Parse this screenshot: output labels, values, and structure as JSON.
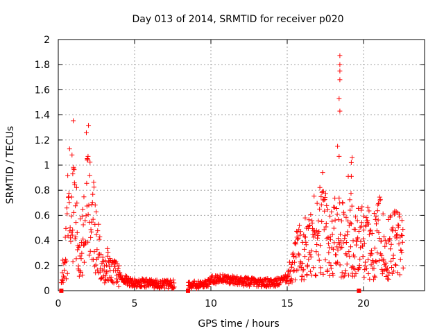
{
  "chart_data": {
    "type": "scatter",
    "title": "Day 013 of 2014, SRMTID for receiver p020",
    "xlabel": "GPS time / hours",
    "ylabel": "SRMTID / TECUs",
    "xlim": [
      0,
      24
    ],
    "ylim": [
      0,
      2
    ],
    "x_ticks": [
      0,
      5,
      10,
      15,
      20
    ],
    "y_ticks": [
      0,
      0.2,
      0.4,
      0.6,
      0.8,
      1,
      1.2,
      1.4,
      1.6,
      1.8,
      2
    ],
    "x_tick_labels": [
      "0",
      "5",
      "10",
      "15",
      "20"
    ],
    "y_tick_labels": [
      "0",
      "0.2",
      "0.4",
      "0.6",
      "0.8",
      "1",
      "1.2",
      "1.4",
      "1.6",
      "1.8",
      "2"
    ],
    "grid": true,
    "marker": "+",
    "series_color": "#ff0000",
    "series": [
      {
        "name": "SRMTID",
        "profile": [
          {
            "x": 0.2,
            "y": 0.05
          },
          {
            "x": 0.3,
            "y": 0.15
          },
          {
            "x": 0.45,
            "y": 0.22
          },
          {
            "x": 0.6,
            "y": 0.5
          },
          {
            "x": 0.75,
            "y": 0.7
          },
          {
            "x": 0.85,
            "y": 0.55
          },
          {
            "x": 0.95,
            "y": 0.8
          },
          {
            "x": 1.05,
            "y": 0.75
          },
          {
            "x": 1.2,
            "y": 0.55
          },
          {
            "x": 1.35,
            "y": 0.3
          },
          {
            "x": 1.5,
            "y": 0.25
          },
          {
            "x": 1.6,
            "y": 0.42
          },
          {
            "x": 1.75,
            "y": 0.55
          },
          {
            "x": 1.85,
            "y": 0.9
          },
          {
            "x": 1.95,
            "y": 0.85
          },
          {
            "x": 2.1,
            "y": 0.55
          },
          {
            "x": 2.25,
            "y": 0.45
          },
          {
            "x": 2.4,
            "y": 0.4
          },
          {
            "x": 2.6,
            "y": 0.3
          },
          {
            "x": 2.8,
            "y": 0.2
          },
          {
            "x": 3.2,
            "y": 0.2
          },
          {
            "x": 3.6,
            "y": 0.16
          },
          {
            "x": 4.0,
            "y": 0.12
          },
          {
            "x": 4.5,
            "y": 0.08
          },
          {
            "x": 5.0,
            "y": 0.06
          },
          {
            "x": 6.0,
            "y": 0.06
          },
          {
            "x": 7.0,
            "y": 0.05
          },
          {
            "x": 7.5,
            "y": 0.05
          },
          {
            "x": 8.6,
            "y": 0.05
          },
          {
            "x": 9.5,
            "y": 0.05
          },
          {
            "x": 10.0,
            "y": 0.08
          },
          {
            "x": 10.8,
            "y": 0.1
          },
          {
            "x": 11.5,
            "y": 0.08
          },
          {
            "x": 12.5,
            "y": 0.07
          },
          {
            "x": 13.5,
            "y": 0.06
          },
          {
            "x": 14.5,
            "y": 0.07
          },
          {
            "x": 15.0,
            "y": 0.1
          },
          {
            "x": 15.4,
            "y": 0.2
          },
          {
            "x": 15.8,
            "y": 0.3
          },
          {
            "x": 16.2,
            "y": 0.32
          },
          {
            "x": 16.6,
            "y": 0.4
          },
          {
            "x": 17.0,
            "y": 0.5
          },
          {
            "x": 17.4,
            "y": 0.5
          },
          {
            "x": 17.8,
            "y": 0.35
          },
          {
            "x": 18.2,
            "y": 0.45
          },
          {
            "x": 18.6,
            "y": 0.42
          },
          {
            "x": 19.0,
            "y": 0.45
          },
          {
            "x": 19.4,
            "y": 0.35
          },
          {
            "x": 19.8,
            "y": 0.38
          },
          {
            "x": 20.2,
            "y": 0.4
          },
          {
            "x": 20.6,
            "y": 0.32
          },
          {
            "x": 21.0,
            "y": 0.45
          },
          {
            "x": 21.4,
            "y": 0.38
          },
          {
            "x": 21.8,
            "y": 0.35
          },
          {
            "x": 22.2,
            "y": 0.4
          },
          {
            "x": 22.6,
            "y": 0.3
          }
        ],
        "spikes": [
          {
            "x": 18.45,
            "y": 1.87
          },
          {
            "x": 18.45,
            "y": 1.8
          },
          {
            "x": 18.45,
            "y": 1.75
          },
          {
            "x": 18.45,
            "y": 1.68
          },
          {
            "x": 18.4,
            "y": 1.53
          },
          {
            "x": 18.45,
            "y": 1.43
          },
          {
            "x": 18.3,
            "y": 1.15
          },
          {
            "x": 18.4,
            "y": 1.07
          },
          {
            "x": 19.25,
            "y": 1.06
          },
          {
            "x": 19.2,
            "y": 1.02
          },
          {
            "x": 19.2,
            "y": 0.91
          },
          {
            "x": 1.95,
            "y": 1.07
          },
          {
            "x": 1.9,
            "y": 1.04
          },
          {
            "x": 1.0,
            "y": 0.97
          },
          {
            "x": 0.95,
            "y": 0.93
          }
        ],
        "gaps": [
          [
            7.6,
            8.5
          ]
        ],
        "squares": [
          {
            "x": 0.2,
            "y": 0
          },
          {
            "x": 8.5,
            "y": 0
          },
          {
            "x": 19.7,
            "y": 0
          }
        ]
      }
    ]
  }
}
